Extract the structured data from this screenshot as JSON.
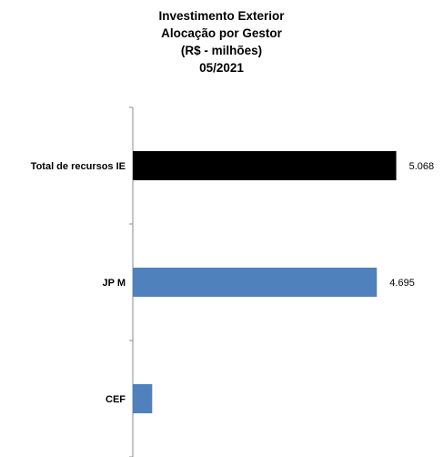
{
  "title_lines": [
    "Investimento Exterior",
    "Alocação por Gestor",
    "(R$ - milhões)",
    "05/2021"
  ],
  "chart_data": {
    "type": "bar",
    "orientation": "horizontal",
    "title": "Investimento Exterior Alocação por Gestor (R$ - milhões) 05/2021",
    "categories": [
      "Total de recursos IE",
      "JP M",
      "CEF"
    ],
    "values": [
      5068,
      4695,
      373
    ],
    "value_labels": [
      "5.068",
      "4.695",
      ""
    ],
    "colors": [
      "#000000",
      "#4f81bd",
      "#4f81bd"
    ],
    "xlim": [
      0,
      5600
    ],
    "grid": false,
    "legend": "none"
  }
}
